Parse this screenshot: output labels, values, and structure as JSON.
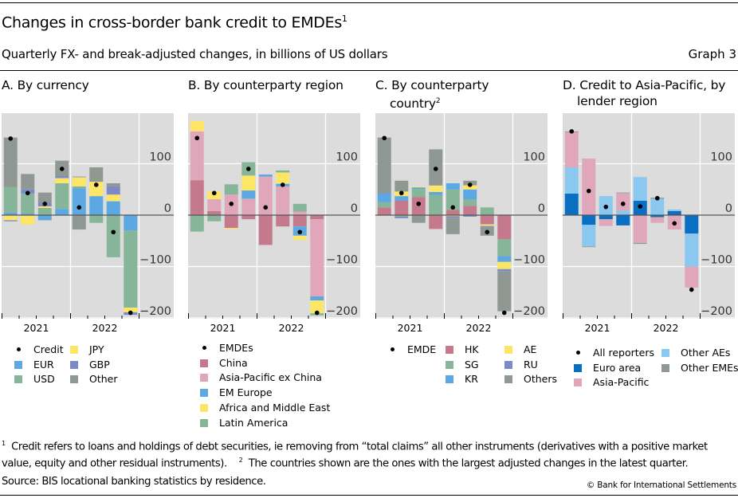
{
  "header": {
    "title": "Changes in cross-border bank credit to EMDEs",
    "title_footnote": "1",
    "subtitle": "Quarterly FX- and break-adjusted changes, in billions of US dollars",
    "graph_number": "Graph 3"
  },
  "colors": {
    "panel_bg": "#dcdcdc",
    "gridline": "#ffffff",
    "zero_line": "#555555",
    "dot": "#000000"
  },
  "chart_data": [
    {
      "id": "A",
      "type": "bar",
      "stacked": true,
      "title": "A. By currency",
      "title_cont": "",
      "title_footnote": "",
      "x_period_labels": [
        "2021",
        "2022"
      ],
      "categories": [
        "Q1 2021",
        "Q2 2021",
        "Q3 2021",
        "Q4 2021",
        "Q1 2022",
        "Q2 2022",
        "Q3 2022",
        "Q4 2022"
      ],
      "ylim": [
        -205,
        200
      ],
      "yticks": [
        100,
        0,
        -100,
        -200
      ],
      "ytick_labels": [
        "100",
        "0",
        "−100",
        "−200"
      ],
      "grid": true,
      "dot_series": {
        "name": "Credit",
        "values": [
          149,
          43,
          22,
          90,
          15,
          59,
          -33,
          -190
        ]
      },
      "series": [
        {
          "name": "EUR",
          "color": "#5ba8e2",
          "values": [
            5,
            3,
            -10,
            12,
            52,
            37,
            27,
            -30
          ]
        },
        {
          "name": "USD",
          "color": "#87b59a",
          "values": [
            50,
            39,
            14,
            50,
            4,
            -15,
            -82,
            -150
          ]
        },
        {
          "name": "JPY",
          "color": "#fde566",
          "values": [
            -10,
            -18,
            3,
            10,
            18,
            28,
            13,
            -9
          ]
        },
        {
          "name": "GBP",
          "color": "#7c8ac8",
          "values": [
            -2,
            8,
            7,
            4,
            1,
            0,
            16,
            -5
          ]
        },
        {
          "name": "Other",
          "color": "#8f9893",
          "values": [
            96,
            30,
            20,
            30,
            -28,
            28,
            6,
            0
          ]
        }
      ],
      "legend": [
        {
          "label": "Credit",
          "kind": "dot"
        },
        {
          "label": "JPY",
          "kind": "swatch",
          "color": "#fde566"
        },
        {
          "label": "EUR",
          "kind": "swatch",
          "color": "#5ba8e2"
        },
        {
          "label": "GBP",
          "kind": "swatch",
          "color": "#7c8ac8"
        },
        {
          "label": "USD",
          "kind": "swatch",
          "color": "#87b59a"
        },
        {
          "label": "Other",
          "kind": "swatch",
          "color": "#8f9893"
        }
      ]
    },
    {
      "id": "B",
      "type": "bar",
      "stacked": true,
      "title": "B. By counterparty region",
      "title_cont": "",
      "title_footnote": "",
      "x_period_labels": [
        "2021",
        "2022"
      ],
      "categories": [
        "Q1 2021",
        "Q2 2021",
        "Q3 2021",
        "Q4 2021",
        "Q1 2022",
        "Q2 2022",
        "Q3 2022",
        "Q4 2022"
      ],
      "ylim": [
        -205,
        200
      ],
      "yticks": [
        100,
        0,
        -100,
        -200
      ],
      "ytick_labels": [
        "100",
        "0",
        "−100",
        "−200"
      ],
      "grid": true,
      "dot_series": {
        "name": "EMDEs",
        "values": [
          150,
          43,
          22,
          90,
          15,
          59,
          -33,
          -190
        ]
      },
      "series": [
        {
          "name": "China",
          "color": "#c47a8c",
          "values": [
            68,
            8,
            -25,
            -8,
            -58,
            -22,
            -22,
            -8
          ]
        },
        {
          "name": "Asia-Pacific ex China",
          "color": "#e0a7bb",
          "values": [
            95,
            23,
            40,
            32,
            75,
            56,
            7,
            -150
          ]
        },
        {
          "name": "EM Europe",
          "color": "#5ba8e2",
          "values": [
            0,
            0,
            0,
            16,
            4,
            5,
            -18,
            -8
          ]
        },
        {
          "name": "Africa and Middle East",
          "color": "#fde566",
          "values": [
            20,
            15,
            -2,
            29,
            0,
            22,
            -8,
            -25
          ]
        },
        {
          "name": "Latin America",
          "color": "#87b59a",
          "values": [
            -32,
            -12,
            20,
            26,
            0,
            4,
            15,
            -4
          ]
        }
      ],
      "legend": [
        {
          "label": "EMDEs",
          "kind": "dot"
        },
        {
          "label": "China",
          "kind": "swatch",
          "color": "#c47a8c"
        },
        {
          "label": "Asia-Pacific ex China",
          "kind": "swatch",
          "color": "#e0a7bb"
        },
        {
          "label": "EM Europe",
          "kind": "swatch",
          "color": "#5ba8e2"
        },
        {
          "label": "Africa and Middle East",
          "kind": "swatch",
          "color": "#fde566"
        },
        {
          "label": "Latin America",
          "kind": "swatch",
          "color": "#87b59a"
        }
      ]
    },
    {
      "id": "C",
      "type": "bar",
      "stacked": true,
      "title": "C. By counterparty",
      "title_cont": "country",
      "title_footnote": "2",
      "x_period_labels": [
        "2021",
        "2022"
      ],
      "categories": [
        "Q1 2021",
        "Q2 2021",
        "Q3 2021",
        "Q4 2021",
        "Q1 2022",
        "Q2 2022",
        "Q3 2022",
        "Q4 2022"
      ],
      "ylim": [
        -205,
        200
      ],
      "yticks": [
        100,
        0,
        -100,
        -200
      ],
      "ytick_labels": [
        "100",
        "0",
        "−100",
        "−200"
      ],
      "grid": true,
      "dot_series": {
        "name": "EMDE",
        "values": [
          150,
          43,
          22,
          90,
          15,
          59,
          -33,
          -190
        ]
      },
      "series": [
        {
          "name": "HK",
          "color": "#c47a8c",
          "values": [
            15,
            28,
            35,
            -27,
            10,
            18,
            -18,
            -47
          ]
        },
        {
          "name": "SG",
          "color": "#87b59a",
          "values": [
            10,
            -3,
            16,
            39,
            40,
            13,
            15,
            -33
          ]
        },
        {
          "name": "KR",
          "color": "#5ba8e2",
          "values": [
            17,
            9,
            3,
            6,
            12,
            19,
            0,
            -11
          ]
        },
        {
          "name": "AE",
          "color": "#fde566",
          "values": [
            0,
            9,
            2,
            13,
            -2,
            8,
            -3,
            -14
          ]
        },
        {
          "name": "RU",
          "color": "#7c8ac8",
          "values": [
            1,
            -3,
            0,
            1,
            -3,
            -3,
            -2,
            -4
          ]
        },
        {
          "name": "Others",
          "color": "#8f9893",
          "values": [
            108,
            21,
            -15,
            69,
            -32,
            9,
            -17,
            -78
          ]
        }
      ],
      "legend": [
        {
          "label": "EMDE",
          "kind": "dot"
        },
        {
          "label": "HK",
          "kind": "swatch",
          "color": "#c47a8c"
        },
        {
          "label": "AE",
          "kind": "swatch",
          "color": "#fde566"
        },
        {
          "label": "SG",
          "kind": "swatch",
          "color": "#87b59a"
        },
        {
          "label": "RU",
          "kind": "swatch",
          "color": "#7c8ac8"
        },
        {
          "label": "KR",
          "kind": "swatch",
          "color": "#5ba8e2"
        },
        {
          "label": "Others",
          "kind": "swatch",
          "color": "#8f9893"
        }
      ]
    },
    {
      "id": "D",
      "type": "bar",
      "stacked": true,
      "title": "D. Credit to Asia-Pacific, by",
      "title_cont": "lender region",
      "title_footnote": "",
      "x_period_labels": [
        "2021",
        "2022"
      ],
      "categories": [
        "Q1 2021",
        "Q2 2021",
        "Q3 2021",
        "Q4 2021",
        "Q1 2022",
        "Q2 2022",
        "Q3 2022",
        "Q4 2022"
      ],
      "ylim": [
        -205,
        200
      ],
      "yticks": [
        100,
        0,
        -100,
        -200
      ],
      "ytick_labels": [
        "100",
        "0",
        "−100",
        "−200"
      ],
      "grid": true,
      "dot_series": {
        "name": "All reporters",
        "values": [
          163,
          47,
          16,
          22,
          17,
          33,
          -16,
          -145
        ]
      },
      "series": [
        {
          "name": "Euro area",
          "color": "#0a6fc2",
          "values": [
            42,
            -19,
            -8,
            -20,
            28,
            -4,
            8,
            -36
          ]
        },
        {
          "name": "Other AEs",
          "color": "#8bc8f0",
          "values": [
            51,
            -42,
            37,
            9,
            46,
            32,
            3,
            -64
          ]
        },
        {
          "name": "Asia-Pacific",
          "color": "#e0a7bb",
          "values": [
            69,
            110,
            -13,
            34,
            -54,
            -11,
            -28,
            -41
          ]
        },
        {
          "name": "Other EMEs",
          "color": "#8f9893",
          "values": [
            1,
            -1,
            0,
            1,
            -2,
            2,
            0,
            0
          ]
        }
      ],
      "legend": [
        {
          "label": "All reporters",
          "kind": "dot"
        },
        {
          "label": "Other AEs",
          "kind": "swatch",
          "color": "#8bc8f0"
        },
        {
          "label": "Euro area",
          "kind": "swatch",
          "color": "#0a6fc2"
        },
        {
          "label": "Other EMEs",
          "kind": "swatch",
          "color": "#8f9893"
        },
        {
          "label": "Asia-Pacific",
          "kind": "swatch",
          "color": "#e0a7bb"
        }
      ]
    }
  ],
  "footnotes": {
    "note1_marker": "1",
    "note1_text": "Credit refers to loans and holdings of debt securities, ie removing from “total claims” all other instruments (derivatives with a positive market",
    "note1_text_cont": "value, equity and other residual instruments).",
    "note2_marker": "2",
    "note2_text": "The countries shown are the ones with the largest adjusted changes in the latest quarter.",
    "source": "Source: BIS locational banking statistics by residence.",
    "copyright": "© Bank for International Settlements"
  }
}
